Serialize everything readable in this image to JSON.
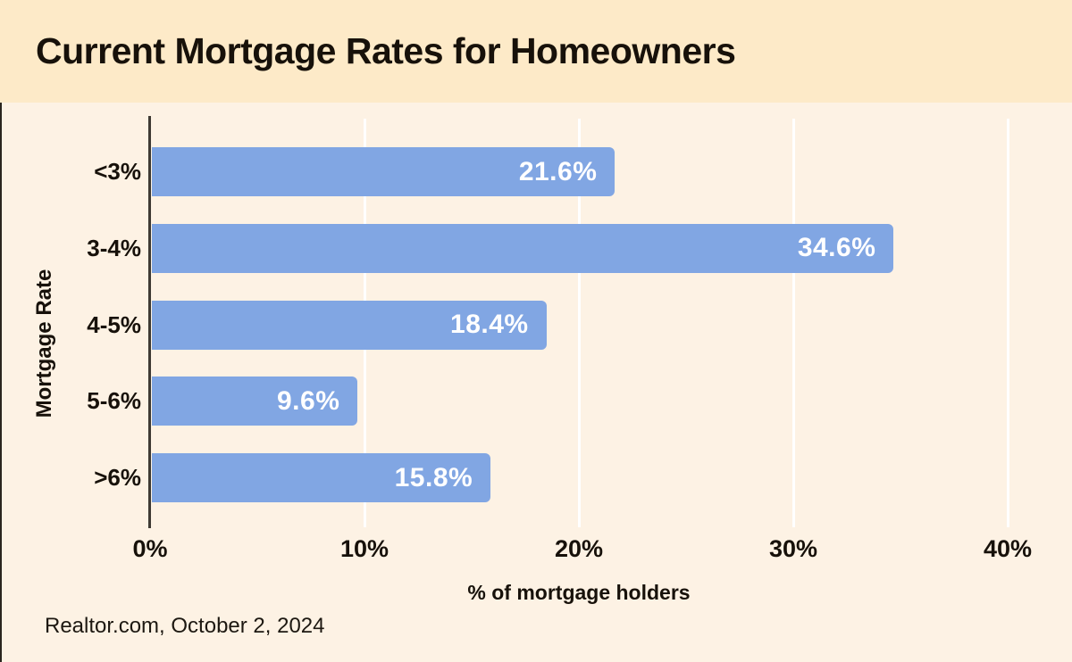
{
  "header": {
    "title": "Current Mortgage Rates for Homeowners"
  },
  "chart_data": {
    "type": "bar",
    "orientation": "horizontal",
    "title": "Current Mortgage Rates for Homeowners",
    "categories": [
      "<3%",
      "3-4%",
      "4-5%",
      "5-6%",
      ">6%"
    ],
    "values": [
      21.6,
      34.6,
      18.4,
      9.6,
      15.8
    ],
    "value_labels": [
      "21.6%",
      "34.6%",
      "18.4%",
      "9.6%",
      "15.8%"
    ],
    "xlabel": "% of mortgage holders",
    "ylabel": "Mortgage Rate",
    "xlim": [
      0,
      40
    ],
    "x_ticks": [
      "0%",
      "10%",
      "20%",
      "30%",
      "40%"
    ],
    "x_tick_values": [
      0,
      10,
      20,
      30,
      40
    ],
    "grid": "vertical white gridlines at each x tick",
    "legend": "none",
    "value_label_position": "inside-end"
  },
  "source": {
    "text": "Realtor.com, October 2, 2024"
  },
  "colors": {
    "header_bg": "#fdeac8",
    "panel_bg": "#fdf2e4",
    "bar": "#81a6e3",
    "bar_value_text": "#ffffff",
    "text": "#17110a",
    "axis_line": "#3e3a33",
    "gridline": "#ffffff"
  }
}
